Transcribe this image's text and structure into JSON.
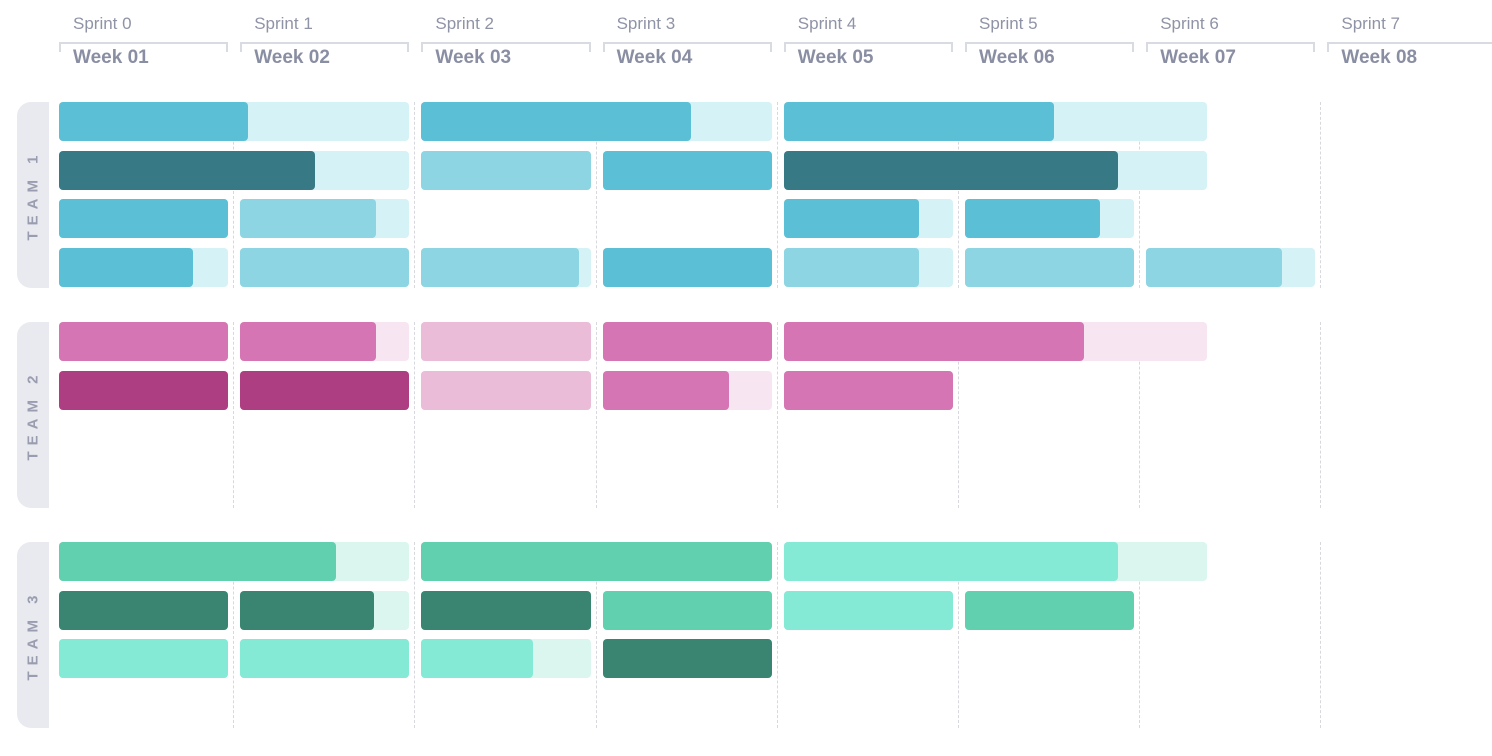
{
  "chart_data": {
    "type": "gantt",
    "title": "",
    "columns": [
      {
        "sprint": "Sprint 0",
        "week": "Week 01"
      },
      {
        "sprint": "Sprint 1",
        "week": "Week 02"
      },
      {
        "sprint": "Sprint 2",
        "week": "Week 03"
      },
      {
        "sprint": "Sprint 3",
        "week": "Week 04"
      },
      {
        "sprint": "Sprint 4",
        "week": "Week 05"
      },
      {
        "sprint": "Sprint 5",
        "week": "Week 06"
      },
      {
        "sprint": "Sprint 6",
        "week": "Week 07"
      },
      {
        "sprint": "Sprint 7",
        "week": "Week 08"
      }
    ],
    "colors": {
      "team1": {
        "dark": "#377985",
        "mid": "#5bc0d6",
        "light": "#8dd5e3",
        "track": "#d5f2f7"
      },
      "team2": {
        "dark": "#ae3e82",
        "mid": "#d575b3",
        "light": "#eabcd8",
        "track": "#f7e6f1"
      },
      "team3": {
        "dark": "#3a8571",
        "mid": "#60d0ae",
        "light": "#85eaD5",
        "track": "#daf6ef"
      }
    },
    "teams": [
      {
        "label": "TEAM 1",
        "rows": [
          [
            {
              "start": 0,
              "span": 2,
              "progress": 0.54,
              "shade": "mid"
            },
            {
              "start": 2,
              "span": 2,
              "progress": 0.77,
              "shade": "mid"
            },
            {
              "start": 4,
              "span": 2.4,
              "progress": 0.64,
              "shade": "mid"
            }
          ],
          [
            {
              "start": 0,
              "span": 2,
              "progress": 0.73,
              "shade": "dark"
            },
            {
              "start": 2,
              "span": 1,
              "progress": 1,
              "shade": "light"
            },
            {
              "start": 3,
              "span": 1,
              "progress": 1,
              "shade": "mid"
            },
            {
              "start": 4,
              "span": 2.4,
              "progress": 0.79,
              "shade": "dark"
            }
          ],
          [
            {
              "start": 0,
              "span": 1,
              "progress": 1,
              "shade": "mid"
            },
            {
              "start": 1,
              "span": 1,
              "progress": 0.8,
              "shade": "light"
            },
            {
              "start": 4,
              "span": 1,
              "progress": 0.8,
              "shade": "mid"
            },
            {
              "start": 5,
              "span": 1,
              "progress": 0.8,
              "shade": "mid"
            }
          ],
          [
            {
              "start": 0,
              "span": 1,
              "progress": 0.79,
              "shade": "mid"
            },
            {
              "start": 1,
              "span": 1,
              "progress": 1,
              "shade": "light"
            },
            {
              "start": 2,
              "span": 1,
              "progress": 0.93,
              "shade": "light"
            },
            {
              "start": 3,
              "span": 1,
              "progress": 1,
              "shade": "mid"
            },
            {
              "start": 4,
              "span": 1,
              "progress": 0.8,
              "shade": "light"
            },
            {
              "start": 5,
              "span": 1,
              "progress": 1,
              "shade": "light"
            },
            {
              "start": 6,
              "span": 1,
              "progress": 0.8,
              "shade": "light"
            }
          ]
        ]
      },
      {
        "label": "TEAM 2",
        "rows": [
          [
            {
              "start": 0,
              "span": 1,
              "progress": 1,
              "shade": "mid"
            },
            {
              "start": 1,
              "span": 1,
              "progress": 0.8,
              "shade": "mid"
            },
            {
              "start": 2,
              "span": 1,
              "progress": 1,
              "shade": "light"
            },
            {
              "start": 3,
              "span": 1,
              "progress": 1,
              "shade": "mid"
            },
            {
              "start": 4,
              "span": 2.4,
              "progress": 0.71,
              "shade": "mid"
            }
          ],
          [
            {
              "start": 0,
              "span": 1,
              "progress": 1,
              "shade": "dark"
            },
            {
              "start": 1,
              "span": 1,
              "progress": 1,
              "shade": "dark"
            },
            {
              "start": 2,
              "span": 1,
              "progress": 1,
              "shade": "light"
            },
            {
              "start": 3,
              "span": 1,
              "progress": 0.75,
              "shade": "mid"
            },
            {
              "start": 4,
              "span": 1,
              "progress": 1,
              "shade": "mid"
            }
          ]
        ]
      },
      {
        "label": "TEAM 3",
        "rows": [
          [
            {
              "start": 0,
              "span": 2,
              "progress": 0.79,
              "shade": "mid"
            },
            {
              "start": 2,
              "span": 2,
              "progress": 1,
              "shade": "mid"
            },
            {
              "start": 4,
              "span": 2.4,
              "progress": 0.79,
              "shade": "light"
            }
          ],
          [
            {
              "start": 0,
              "span": 1,
              "progress": 1,
              "shade": "dark"
            },
            {
              "start": 1,
              "span": 1,
              "progress": 0.79,
              "shade": "dark"
            },
            {
              "start": 2,
              "span": 1,
              "progress": 1,
              "shade": "dark"
            },
            {
              "start": 3,
              "span": 1,
              "progress": 1,
              "shade": "mid"
            },
            {
              "start": 4,
              "span": 1,
              "progress": 1,
              "shade": "light"
            },
            {
              "start": 5,
              "span": 1,
              "progress": 1,
              "shade": "mid"
            }
          ],
          [
            {
              "start": 0,
              "span": 1,
              "progress": 1,
              "shade": "light"
            },
            {
              "start": 1,
              "span": 1,
              "progress": 1,
              "shade": "light"
            },
            {
              "start": 2,
              "span": 1,
              "progress": 0.66,
              "shade": "light"
            },
            {
              "start": 3,
              "span": 1,
              "progress": 1,
              "shade": "dark"
            }
          ]
        ]
      }
    ]
  }
}
